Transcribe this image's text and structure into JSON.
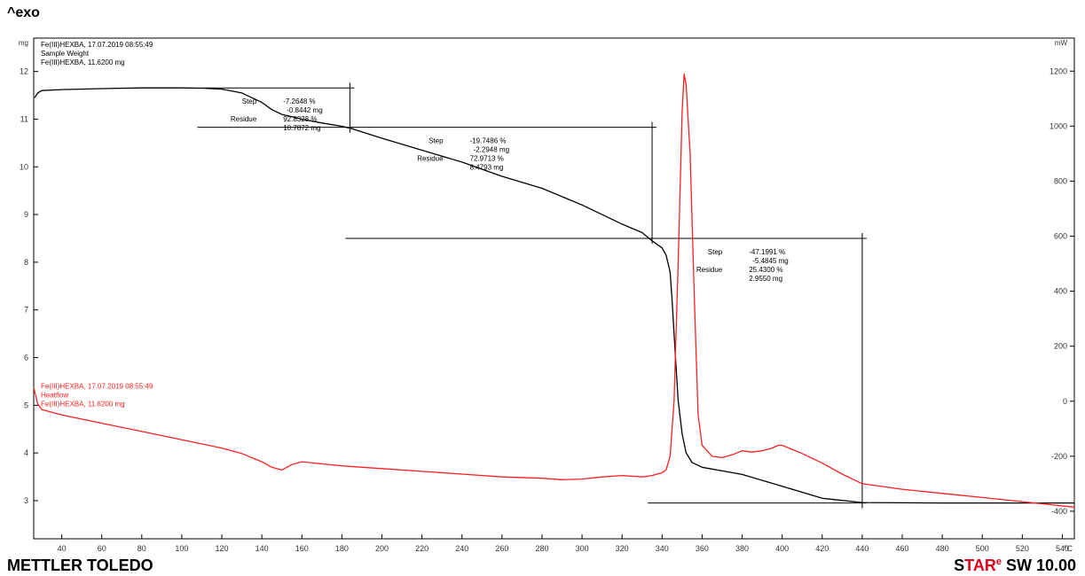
{
  "header": {
    "exo_label": "^exo"
  },
  "footer": {
    "brand": "METTLER TOLEDO",
    "software_prefix": "S",
    "software_red": "TAR",
    "software_sup": "e",
    "software_suffix": " SW 10.00"
  },
  "colors": {
    "tga": "#000000",
    "heatflow": "#ff2020",
    "axis": "#000000",
    "tick_text": "#333333"
  },
  "chart_data": {
    "type": "line",
    "xlabel": "°C",
    "ylabel_left": "mg",
    "ylabel_right": "mW",
    "xlim": [
      26,
      546
    ],
    "ylim_left": [
      2.2,
      12.7
    ],
    "ylim_right": [
      -500,
      1320
    ],
    "x_ticks": [
      40,
      60,
      80,
      100,
      120,
      140,
      160,
      180,
      200,
      220,
      240,
      260,
      280,
      300,
      320,
      340,
      360,
      380,
      400,
      420,
      440,
      460,
      480,
      500,
      520,
      540
    ],
    "y_left_ticks": [
      3,
      4,
      5,
      6,
      7,
      8,
      9,
      10,
      11,
      12
    ],
    "y_right_ticks": [
      -400,
      -200,
      0,
      200,
      400,
      600,
      800,
      1000,
      1200
    ],
    "grid": false,
    "series": [
      {
        "name": "Sample Weight",
        "axis": "left",
        "label_lines": [
          "Fe(III)HEXBA, 17.07.2019 08:55:49",
          "Sample Weight",
          "Fe(III)HEXBA, 11.6200 mg"
        ],
        "x": [
          26.5,
          28,
          30,
          40,
          60,
          80,
          100,
          110,
          120,
          130,
          140,
          145,
          150,
          155,
          160,
          170,
          180,
          185,
          200,
          220,
          240,
          260,
          280,
          300,
          320,
          330,
          335,
          340,
          342,
          344,
          345,
          346,
          347,
          348,
          350,
          352,
          355,
          360,
          380,
          400,
          420,
          440,
          480,
          546
        ],
        "y": [
          11.45,
          11.55,
          11.6,
          11.62,
          11.64,
          11.655,
          11.655,
          11.65,
          11.63,
          11.55,
          11.35,
          11.2,
          11.1,
          11.05,
          11.0,
          10.92,
          10.85,
          10.8,
          10.6,
          10.35,
          10.1,
          9.8,
          9.55,
          9.2,
          8.8,
          8.62,
          8.45,
          8.3,
          8.15,
          7.8,
          7.2,
          6.5,
          5.8,
          5.1,
          4.4,
          4.0,
          3.8,
          3.7,
          3.55,
          3.3,
          3.05,
          2.96,
          2.95,
          2.95
        ]
      },
      {
        "name": "Heatflow",
        "axis": "right",
        "label_lines": [
          "Fe(III)HEXBA, 17.07.2019 08:55:49",
          "Heatflow",
          "Fe(III)HEXBA, 11.6200 mg"
        ],
        "x": [
          26,
          28,
          30,
          40,
          60,
          80,
          100,
          120,
          130,
          140,
          145,
          150,
          155,
          160,
          180,
          200,
          220,
          240,
          260,
          280,
          290,
          300,
          310,
          320,
          330,
          335,
          340,
          342,
          344,
          346,
          348,
          350,
          351,
          352,
          354,
          356,
          358,
          360,
          365,
          370,
          375,
          380,
          385,
          390,
          395,
          398,
          400,
          405,
          410,
          420,
          430,
          440,
          460,
          480,
          500,
          520,
          546
        ],
        "y": [
          50,
          -10,
          -30,
          -50,
          -80,
          -110,
          -140,
          -170,
          -190,
          -220,
          -240,
          -250,
          -230,
          -220,
          -235,
          -245,
          -255,
          -265,
          -275,
          -280,
          -285,
          -283,
          -275,
          -270,
          -275,
          -270,
          -260,
          -250,
          -200,
          0,
          500,
          1050,
          1190,
          1150,
          900,
          400,
          -50,
          -160,
          -200,
          -205,
          -195,
          -180,
          -185,
          -180,
          -170,
          -160,
          -160,
          -175,
          -190,
          -225,
          -265,
          -300,
          -320,
          -335,
          -350,
          -365,
          -385
        ]
      }
    ],
    "annotations": [
      {
        "axis": "left",
        "step_pct": "-7.2648 %",
        "step_mg": "-0.8442 mg",
        "residue_pct": "92.8328 %",
        "residue_mg": "10.7872 mg",
        "x_start": 110,
        "x_end": 184,
        "y_top": 11.655,
        "y_bottom": 10.83
      },
      {
        "axis": "left",
        "step_pct": "-19.7486 %",
        "step_mg": "-2.2948 mg",
        "residue_pct": "72.9713 %",
        "residue_mg": "8.4793 mg",
        "x_start": 184,
        "x_end": 335,
        "y_top": 10.83,
        "y_bottom": 8.5
      },
      {
        "axis": "left",
        "step_pct": "-47.1991 %",
        "step_mg": "-5.4845 mg",
        "residue_pct": "25.4300 %",
        "residue_mg": "2.9550 mg",
        "x_start": 335,
        "x_end": 440,
        "y_top": 8.5,
        "y_bottom": 2.95
      }
    ],
    "step_label": "Step",
    "residue_label": "Residue"
  }
}
